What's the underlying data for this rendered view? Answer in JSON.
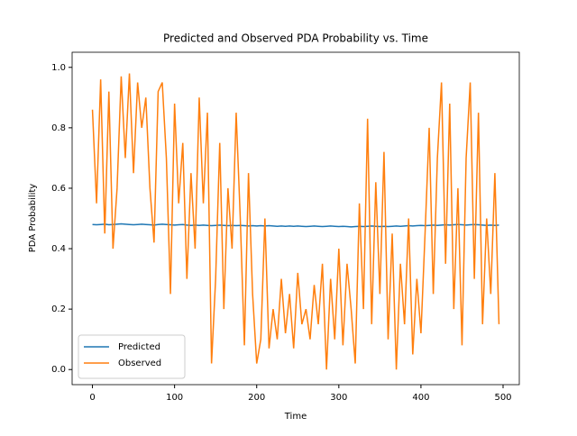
{
  "chart_data": {
    "type": "line",
    "title": "Predicted and Observed PDA Probability vs. Time",
    "x_label": "Time",
    "y_label": "PDA Probability",
    "x": [
      0,
      5,
      10,
      15,
      20,
      25,
      30,
      35,
      40,
      45,
      50,
      55,
      60,
      65,
      70,
      75,
      80,
      85,
      90,
      95,
      100,
      105,
      110,
      115,
      120,
      125,
      130,
      135,
      140,
      145,
      150,
      155,
      160,
      165,
      170,
      175,
      180,
      185,
      190,
      195,
      200,
      205,
      210,
      215,
      220,
      225,
      230,
      235,
      240,
      245,
      250,
      255,
      260,
      265,
      270,
      275,
      280,
      285,
      290,
      295,
      300,
      305,
      310,
      315,
      320,
      325,
      330,
      335,
      340,
      345,
      350,
      355,
      360,
      365,
      370,
      375,
      380,
      385,
      390,
      395,
      400,
      405,
      410,
      415,
      420,
      425,
      430,
      435,
      440,
      445,
      450,
      455,
      460,
      465,
      470,
      475,
      480,
      485,
      490,
      495
    ],
    "series": [
      {
        "name": "Predicted",
        "color": "#1f77b4",
        "values": [
          0.48,
          0.479,
          0.48,
          0.481,
          0.479,
          0.48,
          0.481,
          0.482,
          0.481,
          0.48,
          0.479,
          0.48,
          0.481,
          0.48,
          0.479,
          0.478,
          0.48,
          0.481,
          0.48,
          0.479,
          0.478,
          0.479,
          0.48,
          0.478,
          0.477,
          0.478,
          0.477,
          0.478,
          0.477,
          0.476,
          0.477,
          0.478,
          0.477,
          0.476,
          0.477,
          0.476,
          0.477,
          0.476,
          0.475,
          0.476,
          0.475,
          0.476,
          0.475,
          0.476,
          0.475,
          0.474,
          0.475,
          0.474,
          0.475,
          0.474,
          0.475,
          0.474,
          0.473,
          0.474,
          0.475,
          0.474,
          0.473,
          0.474,
          0.475,
          0.474,
          0.473,
          0.474,
          0.473,
          0.472,
          0.473,
          0.474,
          0.473,
          0.474,
          0.475,
          0.474,
          0.473,
          0.474,
          0.473,
          0.474,
          0.475,
          0.474,
          0.475,
          0.476,
          0.475,
          0.476,
          0.477,
          0.476,
          0.477,
          0.478,
          0.477,
          0.478,
          0.479,
          0.478,
          0.479,
          0.48,
          0.479,
          0.478,
          0.479,
          0.48,
          0.479,
          0.478,
          0.477,
          0.478,
          0.477,
          0.478
        ]
      },
      {
        "name": "Observed",
        "color": "#ff7f0e",
        "values": [
          0.86,
          0.55,
          0.96,
          0.45,
          0.92,
          0.4,
          0.6,
          0.97,
          0.7,
          0.98,
          0.65,
          0.95,
          0.8,
          0.9,
          0.6,
          0.42,
          0.92,
          0.95,
          0.7,
          0.25,
          0.88,
          0.55,
          0.75,
          0.3,
          0.65,
          0.4,
          0.9,
          0.55,
          0.85,
          0.02,
          0.3,
          0.75,
          0.2,
          0.6,
          0.4,
          0.85,
          0.5,
          0.08,
          0.65,
          0.25,
          0.02,
          0.1,
          0.5,
          0.07,
          0.2,
          0.1,
          0.3,
          0.12,
          0.25,
          0.07,
          0.32,
          0.15,
          0.2,
          0.1,
          0.28,
          0.15,
          0.35,
          0.0,
          0.3,
          0.1,
          0.4,
          0.08,
          0.35,
          0.2,
          0.02,
          0.55,
          0.2,
          0.83,
          0.15,
          0.62,
          0.25,
          0.72,
          0.1,
          0.45,
          0.0,
          0.35,
          0.15,
          0.5,
          0.05,
          0.3,
          0.12,
          0.45,
          0.8,
          0.25,
          0.7,
          0.95,
          0.35,
          0.88,
          0.2,
          0.6,
          0.08,
          0.7,
          0.95,
          0.3,
          0.85,
          0.15,
          0.5,
          0.25,
          0.65,
          0.15
        ]
      }
    ],
    "xlim": [
      -24.75,
      519.75
    ],
    "ylim": [
      -0.05,
      1.05
    ],
    "xticks": [
      0,
      100,
      200,
      300,
      400,
      500
    ],
    "yticks": [
      {
        "value": 0,
        "label": "0.0"
      },
      0.2,
      0.4,
      0.6,
      0.8,
      {
        "value": 1,
        "label": "1.0"
      }
    ],
    "legend": "lower left"
  }
}
